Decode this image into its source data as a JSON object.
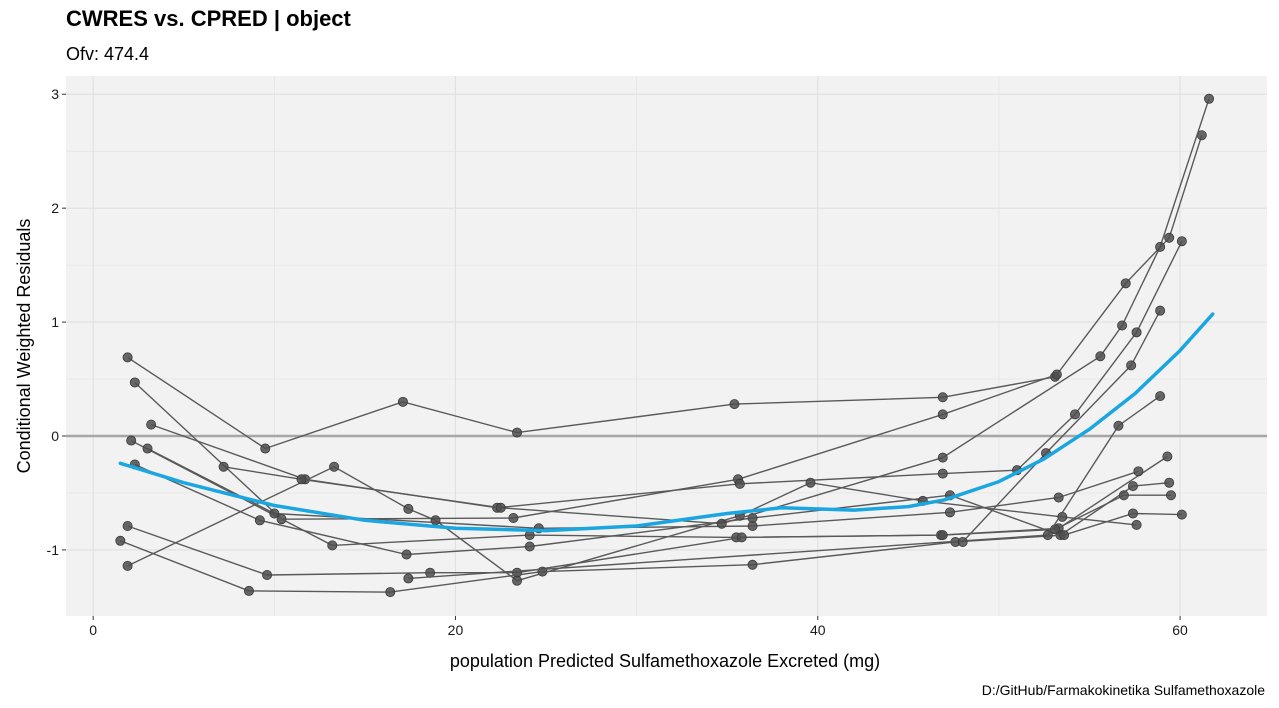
{
  "chart_data": {
    "type": "line",
    "title": "CWRES vs. CPRED | object",
    "subtitle": "Ofv: 474.4",
    "xlabel": "population Predicted Sulfamethoxazole Excreted (mg)",
    "ylabel": "Conditional Weighted Residuals",
    "caption": "D:/GitHub/Farmakokinetika Sulfamethoxazole",
    "xlim": [
      -1.5,
      64.8
    ],
    "ylim": [
      -1.58,
      3.16
    ],
    "x_ticks": [
      {
        "value": 0,
        "label": "0"
      },
      {
        "value": 20,
        "label": "20"
      },
      {
        "value": 40,
        "label": "40"
      },
      {
        "value": 60,
        "label": "60"
      }
    ],
    "y_ticks": [
      {
        "value": -1,
        "label": "-1"
      },
      {
        "value": 0,
        "label": "0"
      },
      {
        "value": 1,
        "label": "1"
      },
      {
        "value": 2,
        "label": "2"
      },
      {
        "value": 3,
        "label": "3"
      }
    ],
    "grid": true,
    "reference_line": {
      "y": 0,
      "color": "#a6a6a6"
    },
    "colors": {
      "panel": "#f2f2f2",
      "grid": "#e0e0e0",
      "points": "#4d4d4d",
      "lines": "#595959",
      "smooth": "#1aa6e0"
    },
    "series": [
      {
        "points": [
          [
            1.9,
            0.69
          ],
          [
            9.5,
            -0.11
          ],
          [
            17.1,
            0.3
          ],
          [
            23.4,
            0.03
          ],
          [
            35.4,
            0.28
          ],
          [
            46.9,
            0.34
          ],
          [
            53.1,
            0.52
          ]
        ]
      },
      {
        "points": [
          [
            2.3,
            0.47
          ],
          [
            10.4,
            -0.73
          ],
          [
            23.2,
            -0.72
          ],
          [
            35.6,
            -0.38
          ],
          [
            46.9,
            0.19
          ],
          [
            53.2,
            0.54
          ],
          [
            57.0,
            1.34
          ],
          [
            59.4,
            1.74
          ],
          [
            61.2,
            2.64
          ]
        ]
      },
      {
        "points": [
          [
            3.2,
            0.1
          ],
          [
            11.7,
            -0.38
          ],
          [
            22.3,
            -0.63
          ],
          [
            35.7,
            -0.42
          ],
          [
            46.9,
            -0.33
          ],
          [
            51.0,
            -0.3
          ],
          [
            54.2,
            0.19
          ],
          [
            57.6,
            0.91
          ],
          [
            60.1,
            1.71
          ]
        ]
      },
      {
        "points": [
          [
            2.1,
            -0.04
          ],
          [
            13.2,
            -0.96
          ],
          [
            24.1,
            -0.87
          ],
          [
            35.5,
            -0.89
          ],
          [
            46.8,
            -0.87
          ],
          [
            53.3,
            -0.81
          ],
          [
            59.3,
            -0.18
          ]
        ]
      },
      {
        "points": [
          [
            3.0,
            -0.11
          ],
          [
            10.0,
            -0.68
          ],
          [
            24.6,
            -0.81
          ],
          [
            36.4,
            -0.79
          ],
          [
            47.3,
            -0.67
          ],
          [
            53.3,
            -0.54
          ],
          [
            57.7,
            -0.31
          ]
        ]
      },
      {
        "points": [
          [
            2.3,
            -0.25
          ],
          [
            9.2,
            -0.74
          ],
          [
            17.3,
            -1.04
          ],
          [
            24.1,
            -0.97
          ],
          [
            36.4,
            -0.72
          ],
          [
            47.3,
            -0.52
          ],
          [
            53.4,
            -0.87
          ],
          [
            57.4,
            -0.44
          ],
          [
            59.4,
            -0.41
          ]
        ]
      },
      {
        "points": [
          [
            1.9,
            -0.79
          ],
          [
            9.6,
            -1.22
          ],
          [
            18.6,
            -1.2
          ],
          [
            23.4,
            -1.2
          ],
          [
            35.8,
            -0.89
          ],
          [
            46.9,
            -0.87
          ],
          [
            53.1,
            -0.82
          ],
          [
            56.9,
            -0.52
          ],
          [
            59.5,
            -0.52
          ]
        ]
      },
      {
        "points": [
          [
            1.5,
            -0.92
          ],
          [
            8.6,
            -1.36
          ],
          [
            16.4,
            -1.37
          ],
          [
            24.8,
            -1.19
          ],
          [
            36.4,
            -1.13
          ],
          [
            47.6,
            -0.93
          ],
          [
            53.6,
            -0.87
          ],
          [
            57.4,
            -0.68
          ],
          [
            60.1,
            -0.69
          ]
        ]
      },
      {
        "points": [
          [
            1.9,
            -1.14
          ],
          [
            13.3,
            -0.27
          ],
          [
            17.4,
            -0.64
          ],
          [
            18.9,
            -0.74
          ],
          [
            23.4,
            -1.27
          ],
          [
            35.7,
            -0.7
          ],
          [
            39.6,
            -0.41
          ],
          [
            45.8,
            -0.57
          ],
          [
            53.5,
            -0.71
          ],
          [
            57.6,
            -0.78
          ]
        ]
      },
      {
        "points": [
          [
            7.2,
            -0.27
          ],
          [
            11.5,
            -0.38
          ],
          [
            22.5,
            -0.63
          ],
          [
            34.7,
            -0.77
          ],
          [
            46.9,
            -0.19
          ],
          [
            55.6,
            0.7
          ],
          [
            56.8,
            0.97
          ],
          [
            58.9,
            1.66
          ],
          [
            61.6,
            2.96
          ]
        ]
      },
      {
        "points": [
          [
            17.4,
            -1.25
          ],
          [
            52.7,
            -0.87
          ],
          [
            56.6,
            0.09
          ],
          [
            58.9,
            0.35
          ]
        ]
      },
      {
        "points": [
          [
            48.0,
            -0.93
          ],
          [
            52.6,
            -0.15
          ],
          [
            57.3,
            0.62
          ],
          [
            58.9,
            1.1
          ]
        ]
      }
    ],
    "smooth": [
      [
        1.5,
        -0.24
      ],
      [
        5,
        -0.41
      ],
      [
        10,
        -0.61
      ],
      [
        15,
        -0.74
      ],
      [
        20,
        -0.81
      ],
      [
        25,
        -0.83
      ],
      [
        30,
        -0.79
      ],
      [
        35,
        -0.68
      ],
      [
        38,
        -0.63
      ],
      [
        42,
        -0.65
      ],
      [
        45,
        -0.62
      ],
      [
        47,
        -0.56
      ],
      [
        50,
        -0.4
      ],
      [
        52.5,
        -0.2
      ],
      [
        55,
        0.06
      ],
      [
        57.5,
        0.37
      ],
      [
        60,
        0.75
      ],
      [
        61.8,
        1.07
      ]
    ]
  }
}
